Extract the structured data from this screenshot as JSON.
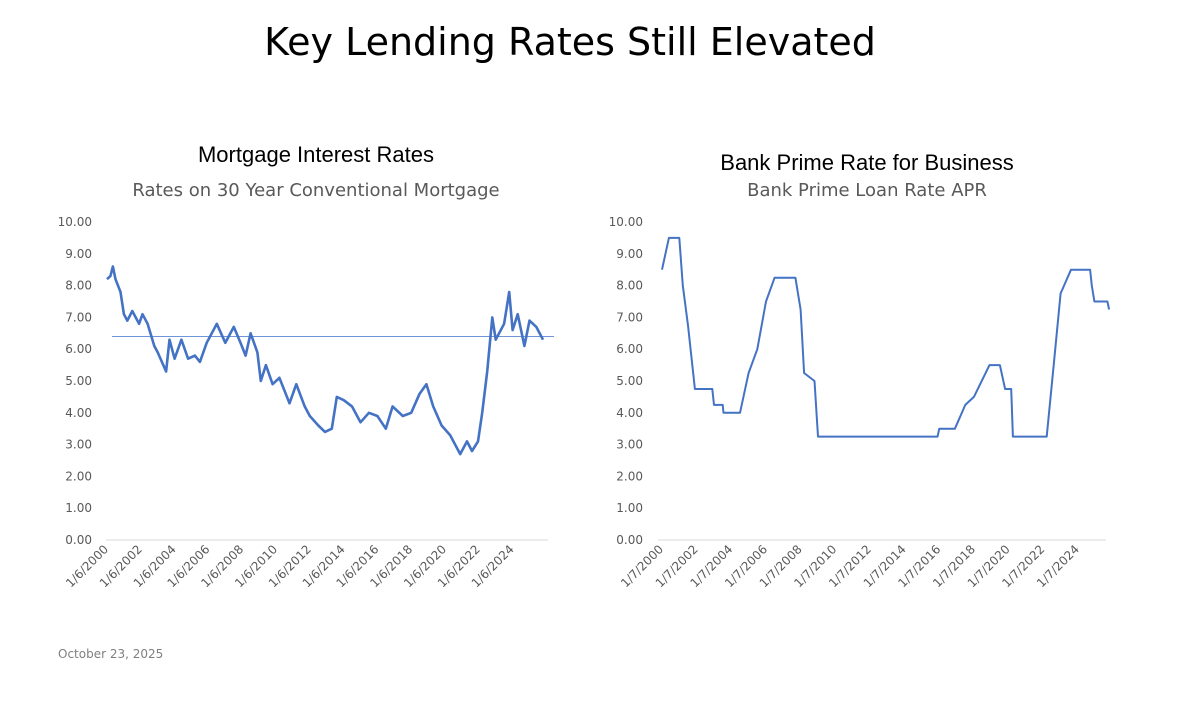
{
  "slide": {
    "title": "Key Lending Rates Still Elevated",
    "date": "October 23, 2025"
  },
  "colors": {
    "series": "#4472C4",
    "average_line": "#6f95d8",
    "axis": "#d9d9d9"
  },
  "chart_data": [
    {
      "type": "line",
      "title": "Mortgage Interest Rates",
      "subtitle": "Rates on 30 Year Conventional Mortgage",
      "xlabel": "",
      "ylabel": "",
      "ylim": [
        0,
        10
      ],
      "xlim": [
        2000,
        2025.8
      ],
      "yticks": [
        "0.00",
        "1.00",
        "2.00",
        "3.00",
        "4.00",
        "5.00",
        "6.00",
        "7.00",
        "8.00",
        "9.00",
        "10.00"
      ],
      "xticks": [
        "1/6/2000",
        "1/6/2002",
        "1/6/2004",
        "1/6/2006",
        "1/6/2008",
        "1/6/2010",
        "1/6/2012",
        "1/6/2014",
        "1/6/2016",
        "1/6/2018",
        "1/6/2020",
        "1/6/2022",
        "1/6/2024"
      ],
      "reference_line": {
        "value": 6.4
      },
      "series": [
        {
          "name": "30 Year Conventional Mortgage Rate",
          "points": [
            [
              2000.0,
              8.2
            ],
            [
              2000.2,
              8.3
            ],
            [
              2000.35,
              8.6
            ],
            [
              2000.5,
              8.2
            ],
            [
              2000.8,
              7.8
            ],
            [
              2001.0,
              7.1
            ],
            [
              2001.2,
              6.9
            ],
            [
              2001.5,
              7.2
            ],
            [
              2001.9,
              6.8
            ],
            [
              2002.1,
              7.1
            ],
            [
              2002.4,
              6.8
            ],
            [
              2002.8,
              6.1
            ],
            [
              2003.0,
              5.9
            ],
            [
              2003.5,
              5.3
            ],
            [
              2003.7,
              6.3
            ],
            [
              2004.0,
              5.7
            ],
            [
              2004.4,
              6.3
            ],
            [
              2004.8,
              5.7
            ],
            [
              2005.2,
              5.8
            ],
            [
              2005.5,
              5.6
            ],
            [
              2005.9,
              6.2
            ],
            [
              2006.5,
              6.8
            ],
            [
              2007.0,
              6.2
            ],
            [
              2007.5,
              6.7
            ],
            [
              2007.9,
              6.2
            ],
            [
              2008.2,
              5.8
            ],
            [
              2008.5,
              6.5
            ],
            [
              2008.9,
              5.9
            ],
            [
              2009.1,
              5.0
            ],
            [
              2009.4,
              5.5
            ],
            [
              2009.8,
              4.9
            ],
            [
              2010.2,
              5.1
            ],
            [
              2010.8,
              4.3
            ],
            [
              2011.2,
              4.9
            ],
            [
              2011.7,
              4.2
            ],
            [
              2012.0,
              3.9
            ],
            [
              2012.5,
              3.6
            ],
            [
              2012.9,
              3.4
            ],
            [
              2013.3,
              3.5
            ],
            [
              2013.6,
              4.5
            ],
            [
              2014.0,
              4.4
            ],
            [
              2014.5,
              4.2
            ],
            [
              2015.0,
              3.7
            ],
            [
              2015.5,
              4.0
            ],
            [
              2016.0,
              3.9
            ],
            [
              2016.5,
              3.5
            ],
            [
              2016.9,
              4.2
            ],
            [
              2017.5,
              3.9
            ],
            [
              2018.0,
              4.0
            ],
            [
              2018.5,
              4.6
            ],
            [
              2018.9,
              4.9
            ],
            [
              2019.3,
              4.2
            ],
            [
              2019.8,
              3.6
            ],
            [
              2020.3,
              3.3
            ],
            [
              2020.9,
              2.7
            ],
            [
              2021.3,
              3.1
            ],
            [
              2021.6,
              2.8
            ],
            [
              2021.95,
              3.1
            ],
            [
              2022.2,
              4.0
            ],
            [
              2022.5,
              5.3
            ],
            [
              2022.8,
              7.0
            ],
            [
              2023.0,
              6.3
            ],
            [
              2023.5,
              6.8
            ],
            [
              2023.8,
              7.8
            ],
            [
              2024.0,
              6.6
            ],
            [
              2024.3,
              7.1
            ],
            [
              2024.7,
              6.1
            ],
            [
              2025.0,
              6.9
            ],
            [
              2025.4,
              6.7
            ],
            [
              2025.8,
              6.3
            ]
          ]
        }
      ]
    },
    {
      "type": "line",
      "title": "Bank Prime Rate for Business",
      "subtitle": "Bank Prime Loan Rate APR",
      "xlabel": "",
      "ylabel": "",
      "ylim": [
        0,
        10
      ],
      "xlim": [
        2000,
        2025.8
      ],
      "yticks": [
        "0.00",
        "1.00",
        "2.00",
        "3.00",
        "4.00",
        "5.00",
        "6.00",
        "7.00",
        "8.00",
        "9.00",
        "10.00"
      ],
      "xticks": [
        "1/7/2000",
        "1/7/2002",
        "1/7/2004",
        "1/7/2006",
        "1/7/2008",
        "1/7/2010",
        "1/7/2012",
        "1/7/2014",
        "1/7/2016",
        "1/7/2018",
        "1/7/2020",
        "1/7/2022",
        "1/7/2024"
      ],
      "series": [
        {
          "name": "Bank Prime Loan Rate",
          "points": [
            [
              2000.0,
              8.5
            ],
            [
              2000.4,
              9.5
            ],
            [
              2001.0,
              9.5
            ],
            [
              2001.2,
              8.0
            ],
            [
              2001.5,
              6.75
            ],
            [
              2001.9,
              4.75
            ],
            [
              2002.9,
              4.75
            ],
            [
              2003.0,
              4.25
            ],
            [
              2003.5,
              4.25
            ],
            [
              2003.55,
              4.0
            ],
            [
              2004.5,
              4.0
            ],
            [
              2005.0,
              5.25
            ],
            [
              2005.5,
              6.0
            ],
            [
              2006.0,
              7.5
            ],
            [
              2006.5,
              8.25
            ],
            [
              2007.7,
              8.25
            ],
            [
              2008.0,
              7.25
            ],
            [
              2008.2,
              5.25
            ],
            [
              2008.8,
              5.0
            ],
            [
              2009.0,
              3.25
            ],
            [
              2015.9,
              3.25
            ],
            [
              2016.0,
              3.5
            ],
            [
              2016.9,
              3.5
            ],
            [
              2017.5,
              4.25
            ],
            [
              2018.0,
              4.5
            ],
            [
              2018.9,
              5.5
            ],
            [
              2019.5,
              5.5
            ],
            [
              2019.8,
              4.75
            ],
            [
              2020.15,
              4.75
            ],
            [
              2020.25,
              3.25
            ],
            [
              2022.2,
              3.25
            ],
            [
              2022.6,
              5.5
            ],
            [
              2023.0,
              7.75
            ],
            [
              2023.6,
              8.5
            ],
            [
              2024.7,
              8.5
            ],
            [
              2024.8,
              8.0
            ],
            [
              2024.95,
              7.5
            ],
            [
              2025.7,
              7.5
            ],
            [
              2025.8,
              7.25
            ]
          ]
        }
      ]
    }
  ]
}
